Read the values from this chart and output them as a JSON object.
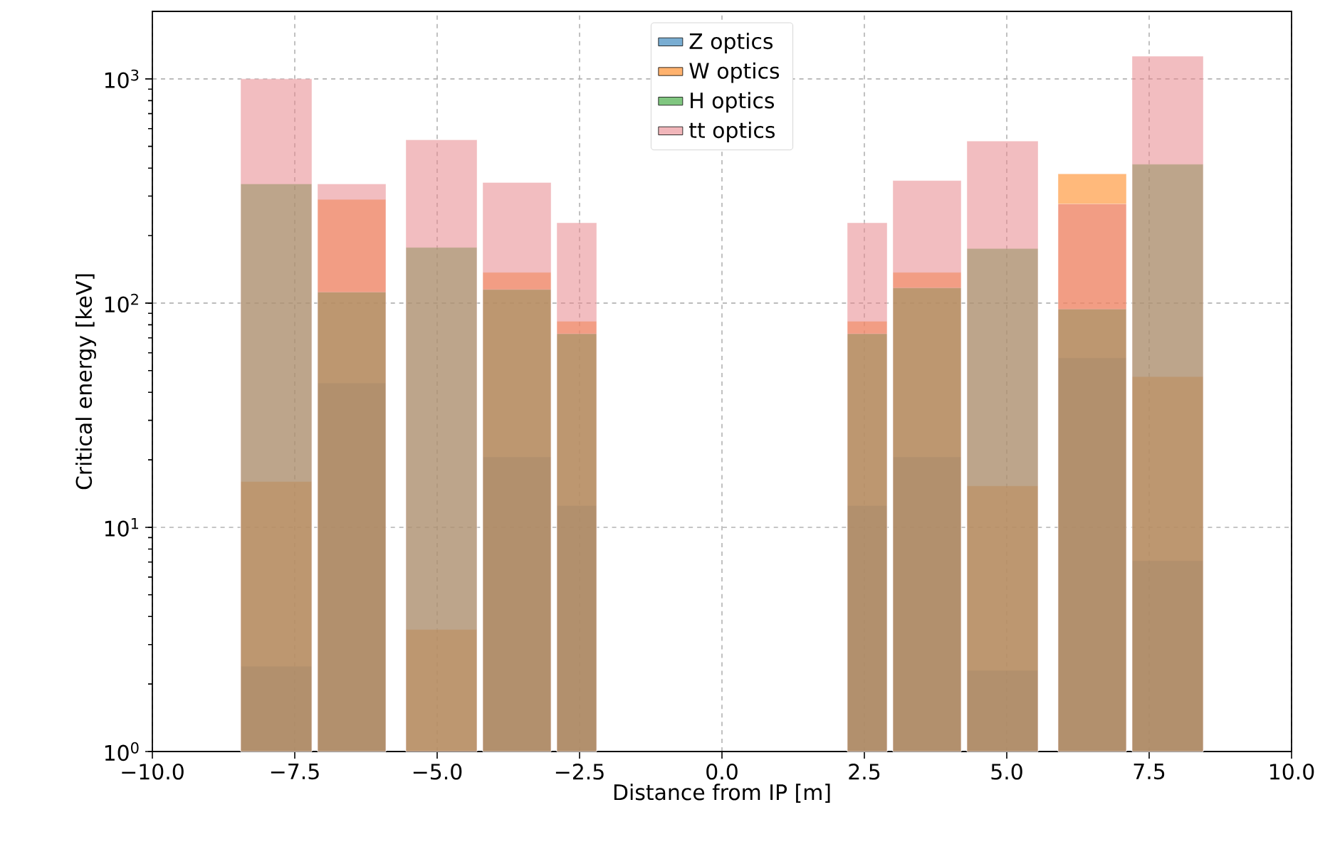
{
  "chart_data": {
    "type": "histogram",
    "xlabel": "Distance from IP [m]",
    "ylabel": "Critical energy [keV]",
    "bins": [
      -8.45,
      -7.2,
      -7.1,
      -5.9,
      -5.55,
      -4.3,
      -4.2,
      -3.0,
      -2.9,
      -2.2,
      2.2,
      2.9,
      3.0,
      4.2,
      4.3,
      5.55,
      5.9,
      7.1,
      7.2,
      8.45
    ],
    "series": [
      {
        "name": "Z optics",
        "color": "#1f77b4",
        "values": [
          2.4,
          null,
          44,
          null,
          null,
          null,
          20.6,
          null,
          12.5,
          null,
          12.5,
          null,
          20.6,
          null,
          2.3,
          null,
          57,
          null,
          7.1
        ]
      },
      {
        "name": "W optics",
        "color": "#ff7f0e",
        "values": [
          16,
          null,
          290,
          null,
          3.5,
          null,
          137,
          null,
          83,
          null,
          83,
          null,
          137,
          null,
          15.3,
          null,
          377,
          null,
          47
        ]
      },
      {
        "name": "H optics",
        "color": "#2ca02c",
        "values": [
          340,
          null,
          112,
          null,
          177,
          null,
          115,
          null,
          73,
          null,
          73,
          null,
          117,
          null,
          175,
          null,
          94,
          null,
          416
        ]
      },
      {
        "name": "tt optics",
        "color": "#e8868c",
        "values": [
          1000,
          null,
          340,
          null,
          535,
          null,
          345,
          null,
          228,
          null,
          228,
          null,
          352,
          null,
          528,
          null,
          277,
          null,
          1262
        ]
      }
    ],
    "log": "y",
    "xlim": [
      -10,
      10
    ],
    "ylim": [
      1,
      2000
    ],
    "xticks": [
      {
        "value": -10,
        "label": "−10.0"
      },
      {
        "value": -7.5,
        "label": "−7.5"
      },
      {
        "value": -5,
        "label": "−5.0"
      },
      {
        "value": -2.5,
        "label": "−2.5"
      },
      {
        "value": 0,
        "label": "0.0"
      },
      {
        "value": 2.5,
        "label": "2.5"
      },
      {
        "value": 5,
        "label": "5.0"
      },
      {
        "value": 7.5,
        "label": "7.5"
      },
      {
        "value": 10,
        "label": "10.0"
      }
    ],
    "yticks": [
      {
        "value": 1,
        "label": "10$^{0}$"
      },
      {
        "value": 10,
        "label": "10$^{1}$"
      },
      {
        "value": 100,
        "label": "10$^{2}$"
      },
      {
        "value": 1000,
        "label": "10$^{3}$"
      }
    ],
    "grid": true,
    "legend": "top"
  }
}
